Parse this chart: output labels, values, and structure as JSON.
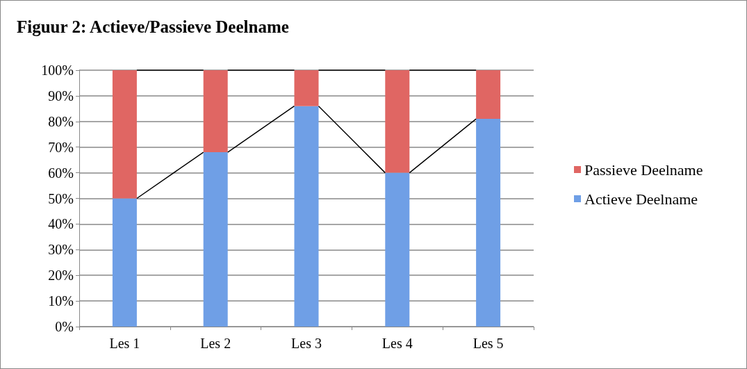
{
  "chart_data": {
    "type": "bar",
    "stacked": true,
    "title": "Figuur 2: Actieve/Passieve Deelname",
    "categories": [
      "Les 1",
      "Les 2",
      "Les 3",
      "Les 4",
      "Les 5"
    ],
    "series": [
      {
        "name": "Actieve Deelname",
        "color": "#6f9fe6",
        "values": [
          50,
          68,
          86,
          60,
          81
        ]
      },
      {
        "name": "Passieve Deelname",
        "color": "#e06663",
        "values": [
          50,
          32,
          14,
          40,
          19
        ]
      }
    ],
    "ylim": [
      0,
      100
    ],
    "yticks": [
      {
        "value": 0,
        "label": "0%"
      },
      {
        "value": 10,
        "label": "10%"
      },
      {
        "value": 20,
        "label": "20%"
      },
      {
        "value": 30,
        "label": "30%"
      },
      {
        "value": 40,
        "label": "40%"
      },
      {
        "value": 50,
        "label": "50%"
      },
      {
        "value": 60,
        "label": "60%"
      },
      {
        "value": 70,
        "label": "70%"
      },
      {
        "value": 80,
        "label": "80%"
      },
      {
        "value": 90,
        "label": "90%"
      },
      {
        "value": 100,
        "label": "100%"
      }
    ],
    "grid": "y",
    "legend": "right"
  }
}
